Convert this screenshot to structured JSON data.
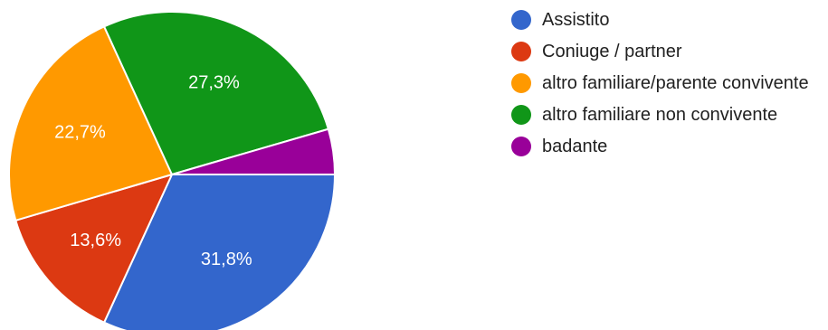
{
  "chart_data": {
    "type": "pie",
    "title": "",
    "legend_position": "right",
    "slices": [
      {
        "label": "Assistito",
        "value": 31.8,
        "display": "31,8%",
        "color": "#3366cc"
      },
      {
        "label": "Coniuge / partner",
        "value": 13.6,
        "display": "13,6%",
        "color": "#dc3912"
      },
      {
        "label": "altro familiare/parente convivente",
        "value": 22.7,
        "display": "22,7%",
        "color": "#ff9900"
      },
      {
        "label": "altro familiare non convivente",
        "value": 27.3,
        "display": "27,3%",
        "color": "#109618"
      },
      {
        "label": "badante",
        "value": 4.5,
        "display": "",
        "color": "#990099"
      }
    ]
  }
}
